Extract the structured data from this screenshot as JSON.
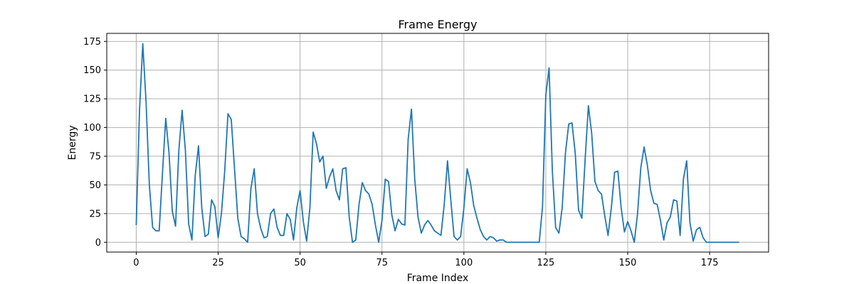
{
  "chart_data": {
    "type": "line",
    "title": "Frame Energy",
    "xlabel": "Frame Index",
    "ylabel": "Energy",
    "xlim": [
      -9,
      193
    ],
    "ylim": [
      -8.5,
      182
    ],
    "xticks": [
      0,
      25,
      50,
      75,
      100,
      125,
      150,
      175
    ],
    "yticks": [
      0,
      25,
      50,
      75,
      100,
      125,
      150,
      175
    ],
    "grid": true,
    "line_color": "#1f77b4",
    "series": [
      {
        "name": "",
        "y": [
          15,
          115,
          173,
          122,
          50,
          13,
          10,
          10,
          60,
          108,
          78,
          27,
          14,
          80,
          115,
          80,
          16,
          2,
          58,
          84,
          30,
          5,
          7,
          37,
          31,
          4,
          25,
          62,
          112,
          107,
          64,
          21,
          5,
          3,
          0,
          47,
          64,
          25,
          12,
          4,
          5,
          25,
          29,
          13,
          6,
          6,
          25,
          20,
          2,
          30,
          45,
          18,
          1,
          30,
          96,
          86,
          70,
          75,
          47,
          57,
          64,
          45,
          37,
          64,
          65,
          22,
          0,
          2,
          33,
          52,
          45,
          42,
          33,
          15,
          0,
          19,
          55,
          53,
          24,
          10,
          20,
          16,
          15,
          90,
          116,
          55,
          22,
          8,
          15,
          19,
          15,
          10,
          8,
          6,
          33,
          71,
          37,
          5,
          2,
          5,
          30,
          64,
          52,
          32,
          21,
          11,
          5,
          2,
          5,
          4,
          1,
          2,
          2,
          0,
          0,
          0,
          0,
          0,
          0,
          0,
          0,
          0,
          0,
          0,
          31,
          128,
          152,
          62,
          13,
          8,
          30,
          78,
          103,
          104,
          77,
          28,
          21,
          72,
          119,
          95,
          53,
          45,
          42,
          23,
          6,
          30,
          61,
          62,
          30,
          9,
          18,
          10,
          0,
          25,
          65,
          83,
          67,
          45,
          34,
          33,
          19,
          2,
          17,
          22,
          37,
          36,
          6,
          55,
          71,
          17,
          1,
          11,
          13,
          4,
          0,
          0,
          0,
          0,
          0,
          0,
          0,
          0,
          0,
          0,
          0
        ]
      }
    ]
  }
}
